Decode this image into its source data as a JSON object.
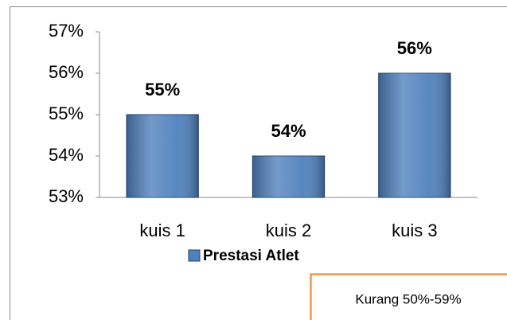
{
  "chart_data": {
    "type": "bar",
    "categories": [
      "kuis 1",
      "kuis 2",
      "kuis 3"
    ],
    "series": [
      {
        "name": "Prestasi Atlet",
        "color": "#4f81bd",
        "values": [
          55,
          54,
          56
        ],
        "value_labels": [
          "55%",
          "54%",
          "56%"
        ]
      }
    ],
    "ylim": [
      53,
      57
    ],
    "yticks": [
      {
        "value": 53,
        "label": "53%"
      },
      {
        "value": 54,
        "label": "54%"
      },
      {
        "value": 55,
        "label": "55%"
      },
      {
        "value": 56,
        "label": "56%"
      },
      {
        "value": 57,
        "label": "57%"
      }
    ],
    "legend": "bottom",
    "annotation": "Kurang 50%-59%"
  }
}
